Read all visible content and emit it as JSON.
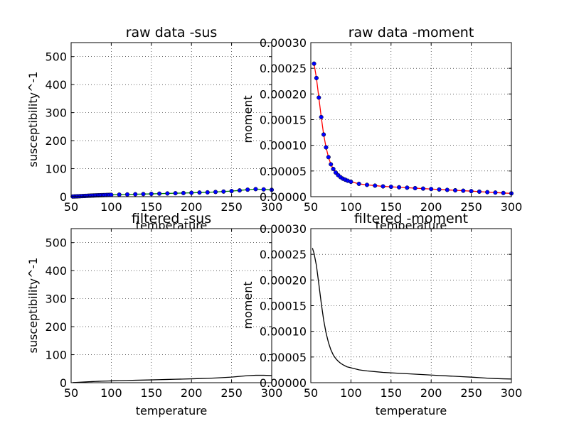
{
  "chart_data": [
    {
      "type": "line",
      "title": "raw data -sus",
      "xlabel": "temperature",
      "ylabel": "susceptibility^-1",
      "xlim": [
        50,
        300
      ],
      "ylim": [
        0,
        550
      ],
      "xticks": [
        "50",
        "100",
        "150",
        "200",
        "250",
        "300"
      ],
      "yticks": [
        "0",
        "100",
        "200",
        "300",
        "400",
        "500"
      ],
      "grid": true,
      "line_color": "#008000",
      "marker_color": "#0000ff",
      "markers": true,
      "series": [
        {
          "x": [
            52,
            54,
            56,
            58,
            60,
            62,
            64,
            66,
            68,
            70,
            72,
            74,
            76,
            78,
            80,
            82,
            84,
            86,
            88,
            90,
            92,
            94,
            96,
            98,
            100,
            110,
            120,
            130,
            140,
            150,
            160,
            170,
            180,
            190,
            200,
            210,
            220,
            230,
            240,
            250,
            260,
            270,
            280,
            290,
            300
          ],
          "y": [
            0.5,
            0.8,
            1.0,
            1.3,
            1.6,
            1.9,
            2.2,
            2.5,
            2.8,
            3.1,
            3.4,
            3.7,
            4.0,
            4.2,
            4.5,
            4.7,
            4.9,
            5.1,
            5.3,
            5.5,
            5.7,
            5.9,
            6.1,
            6.3,
            6.5,
            7.3,
            8.0,
            8.7,
            9.3,
            10.0,
            10.8,
            11.5,
            12.3,
            13.0,
            13.8,
            14.7,
            15.5,
            16.8,
            18.3,
            20.0,
            22.3,
            25.0,
            27.0,
            26.0,
            24.5
          ]
        }
      ]
    },
    {
      "type": "line",
      "title": "raw data -moment",
      "xlabel": "temperature",
      "ylabel": "moment",
      "xlim": [
        50,
        300
      ],
      "ylim": [
        0,
        0.0003
      ],
      "xticks": [
        "50",
        "100",
        "150",
        "200",
        "250",
        "300"
      ],
      "yticks": [
        "0.00000",
        "0.00005",
        "0.00010",
        "0.00015",
        "0.00020",
        "0.00025",
        "0.00030"
      ],
      "grid": true,
      "line_color": "#ff0000",
      "marker_color": "#0000ff",
      "markers": true,
      "series": [
        {
          "x": [
            54,
            57,
            60,
            63,
            66,
            69,
            72,
            75,
            78,
            81,
            84,
            87,
            90,
            93,
            96,
            100,
            110,
            120,
            130,
            140,
            150,
            160,
            170,
            180,
            190,
            200,
            210,
            220,
            230,
            240,
            250,
            260,
            270,
            280,
            290,
            300
          ],
          "y": [
            0.000259,
            0.000231,
            0.000193,
            0.000155,
            0.000121,
            9.6e-05,
            7.7e-05,
            6.3e-05,
            5.4e-05,
            4.7e-05,
            4.2e-05,
            3.8e-05,
            3.5e-05,
            3.3e-05,
            3.1e-05,
            2.9e-05,
            2.5e-05,
            2.3e-05,
            2.15e-05,
            2e-05,
            1.92e-05,
            1.83e-05,
            1.75e-05,
            1.66e-05,
            1.57e-05,
            1.49e-05,
            1.4e-05,
            1.32e-05,
            1.24e-05,
            1.16e-05,
            1.08e-05,
            9.8e-06,
            8.8e-06,
            8e-06,
            7.2e-06,
            6.4e-06
          ]
        }
      ]
    },
    {
      "type": "line",
      "title": "filtered -sus",
      "xlabel": "temperature",
      "ylabel": "susceptibility^-1",
      "xlim": [
        50,
        300
      ],
      "ylim": [
        0,
        550
      ],
      "xticks": [
        "50",
        "100",
        "150",
        "200",
        "250",
        "300"
      ],
      "yticks": [
        "0",
        "100",
        "200",
        "300",
        "400",
        "500"
      ],
      "grid": true,
      "line_color": "#000000",
      "markers": false,
      "series": [
        {
          "x": [
            52,
            56,
            60,
            64,
            68,
            72,
            76,
            80,
            84,
            88,
            92,
            96,
            100,
            110,
            120,
            130,
            140,
            150,
            160,
            170,
            180,
            190,
            200,
            210,
            220,
            230,
            240,
            250,
            260,
            270,
            280,
            290,
            300
          ],
          "y": [
            0.5,
            1.0,
            1.6,
            2.2,
            2.8,
            3.4,
            4.0,
            4.5,
            4.9,
            5.3,
            5.7,
            6.1,
            6.5,
            7.3,
            8.0,
            8.7,
            9.3,
            10.0,
            10.8,
            11.5,
            12.3,
            13.0,
            13.8,
            14.7,
            15.5,
            16.8,
            18.3,
            20.0,
            22.5,
            25.0,
            26.5,
            26.5,
            25.5
          ]
        }
      ]
    },
    {
      "type": "line",
      "title": "filtered -moment",
      "xlabel": "temperature",
      "ylabel": "moment",
      "xlim": [
        50,
        300
      ],
      "ylim": [
        0,
        0.0003
      ],
      "xticks": [
        "50",
        "100",
        "150",
        "200",
        "250",
        "300"
      ],
      "yticks": [
        "0.00000",
        "0.00005",
        "0.00010",
        "0.00015",
        "0.00020",
        "0.00025",
        "0.00030"
      ],
      "grid": true,
      "line_color": "#000000",
      "markers": false,
      "series": [
        {
          "x": [
            52,
            54,
            57,
            60,
            63,
            66,
            69,
            72,
            75,
            78,
            81,
            84,
            87,
            90,
            95,
            100,
            110,
            120,
            130,
            140,
            150,
            160,
            170,
            180,
            190,
            200,
            210,
            220,
            230,
            240,
            250,
            260,
            270,
            280,
            290,
            300
          ],
          "y": [
            0.000262,
            0.000252,
            0.000228,
            0.000192,
            0.000155,
            0.000122,
            9.7e-05,
            7.8e-05,
            6.4e-05,
            5.4e-05,
            4.7e-05,
            4.2e-05,
            3.8e-05,
            3.5e-05,
            3.1e-05,
            2.9e-05,
            2.5e-05,
            2.3e-05,
            2.15e-05,
            2e-05,
            1.92e-05,
            1.83e-05,
            1.75e-05,
            1.66e-05,
            1.57e-05,
            1.49e-05,
            1.4e-05,
            1.32e-05,
            1.24e-05,
            1.16e-05,
            1.08e-05,
            9.8e-06,
            8.8e-06,
            8e-06,
            7.5e-06,
            7.2e-06
          ]
        }
      ]
    }
  ]
}
